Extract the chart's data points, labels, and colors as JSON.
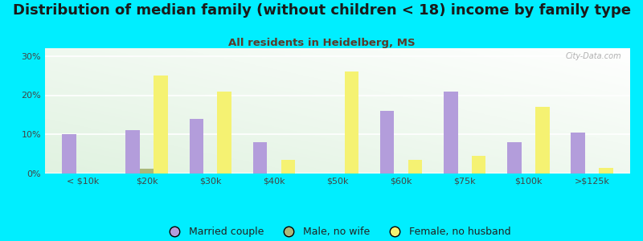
{
  "title": "Distribution of median family (without children < 18) income by family type",
  "subtitle": "All residents in Heidelberg, MS",
  "categories": [
    "< $10k",
    "$20k",
    "$30k",
    "$40k",
    "$50k",
    "$60k",
    "$75k",
    "$100k",
    ">$125k"
  ],
  "married_couple": [
    10,
    11,
    14,
    8,
    0,
    16,
    21,
    8,
    10.5
  ],
  "male_no_wife": [
    0,
    1.2,
    0,
    0,
    0,
    0,
    0,
    0,
    0
  ],
  "female_no_husband": [
    0,
    25,
    21,
    3.5,
    26,
    3.5,
    4.5,
    17,
    1.5
  ],
  "bar_width": 0.22,
  "colors": {
    "married_couple": "#b39ddb",
    "male_no_wife": "#aab87a",
    "female_no_husband": "#f5f272"
  },
  "bg_color": "#00eeff",
  "ylim": [
    0,
    32
  ],
  "yticks": [
    0,
    10,
    20,
    30
  ],
  "ytick_labels": [
    "0%",
    "10%",
    "20%",
    "30%"
  ],
  "title_fontsize": 13,
  "subtitle_fontsize": 9.5,
  "legend_fontsize": 9,
  "tick_fontsize": 8
}
